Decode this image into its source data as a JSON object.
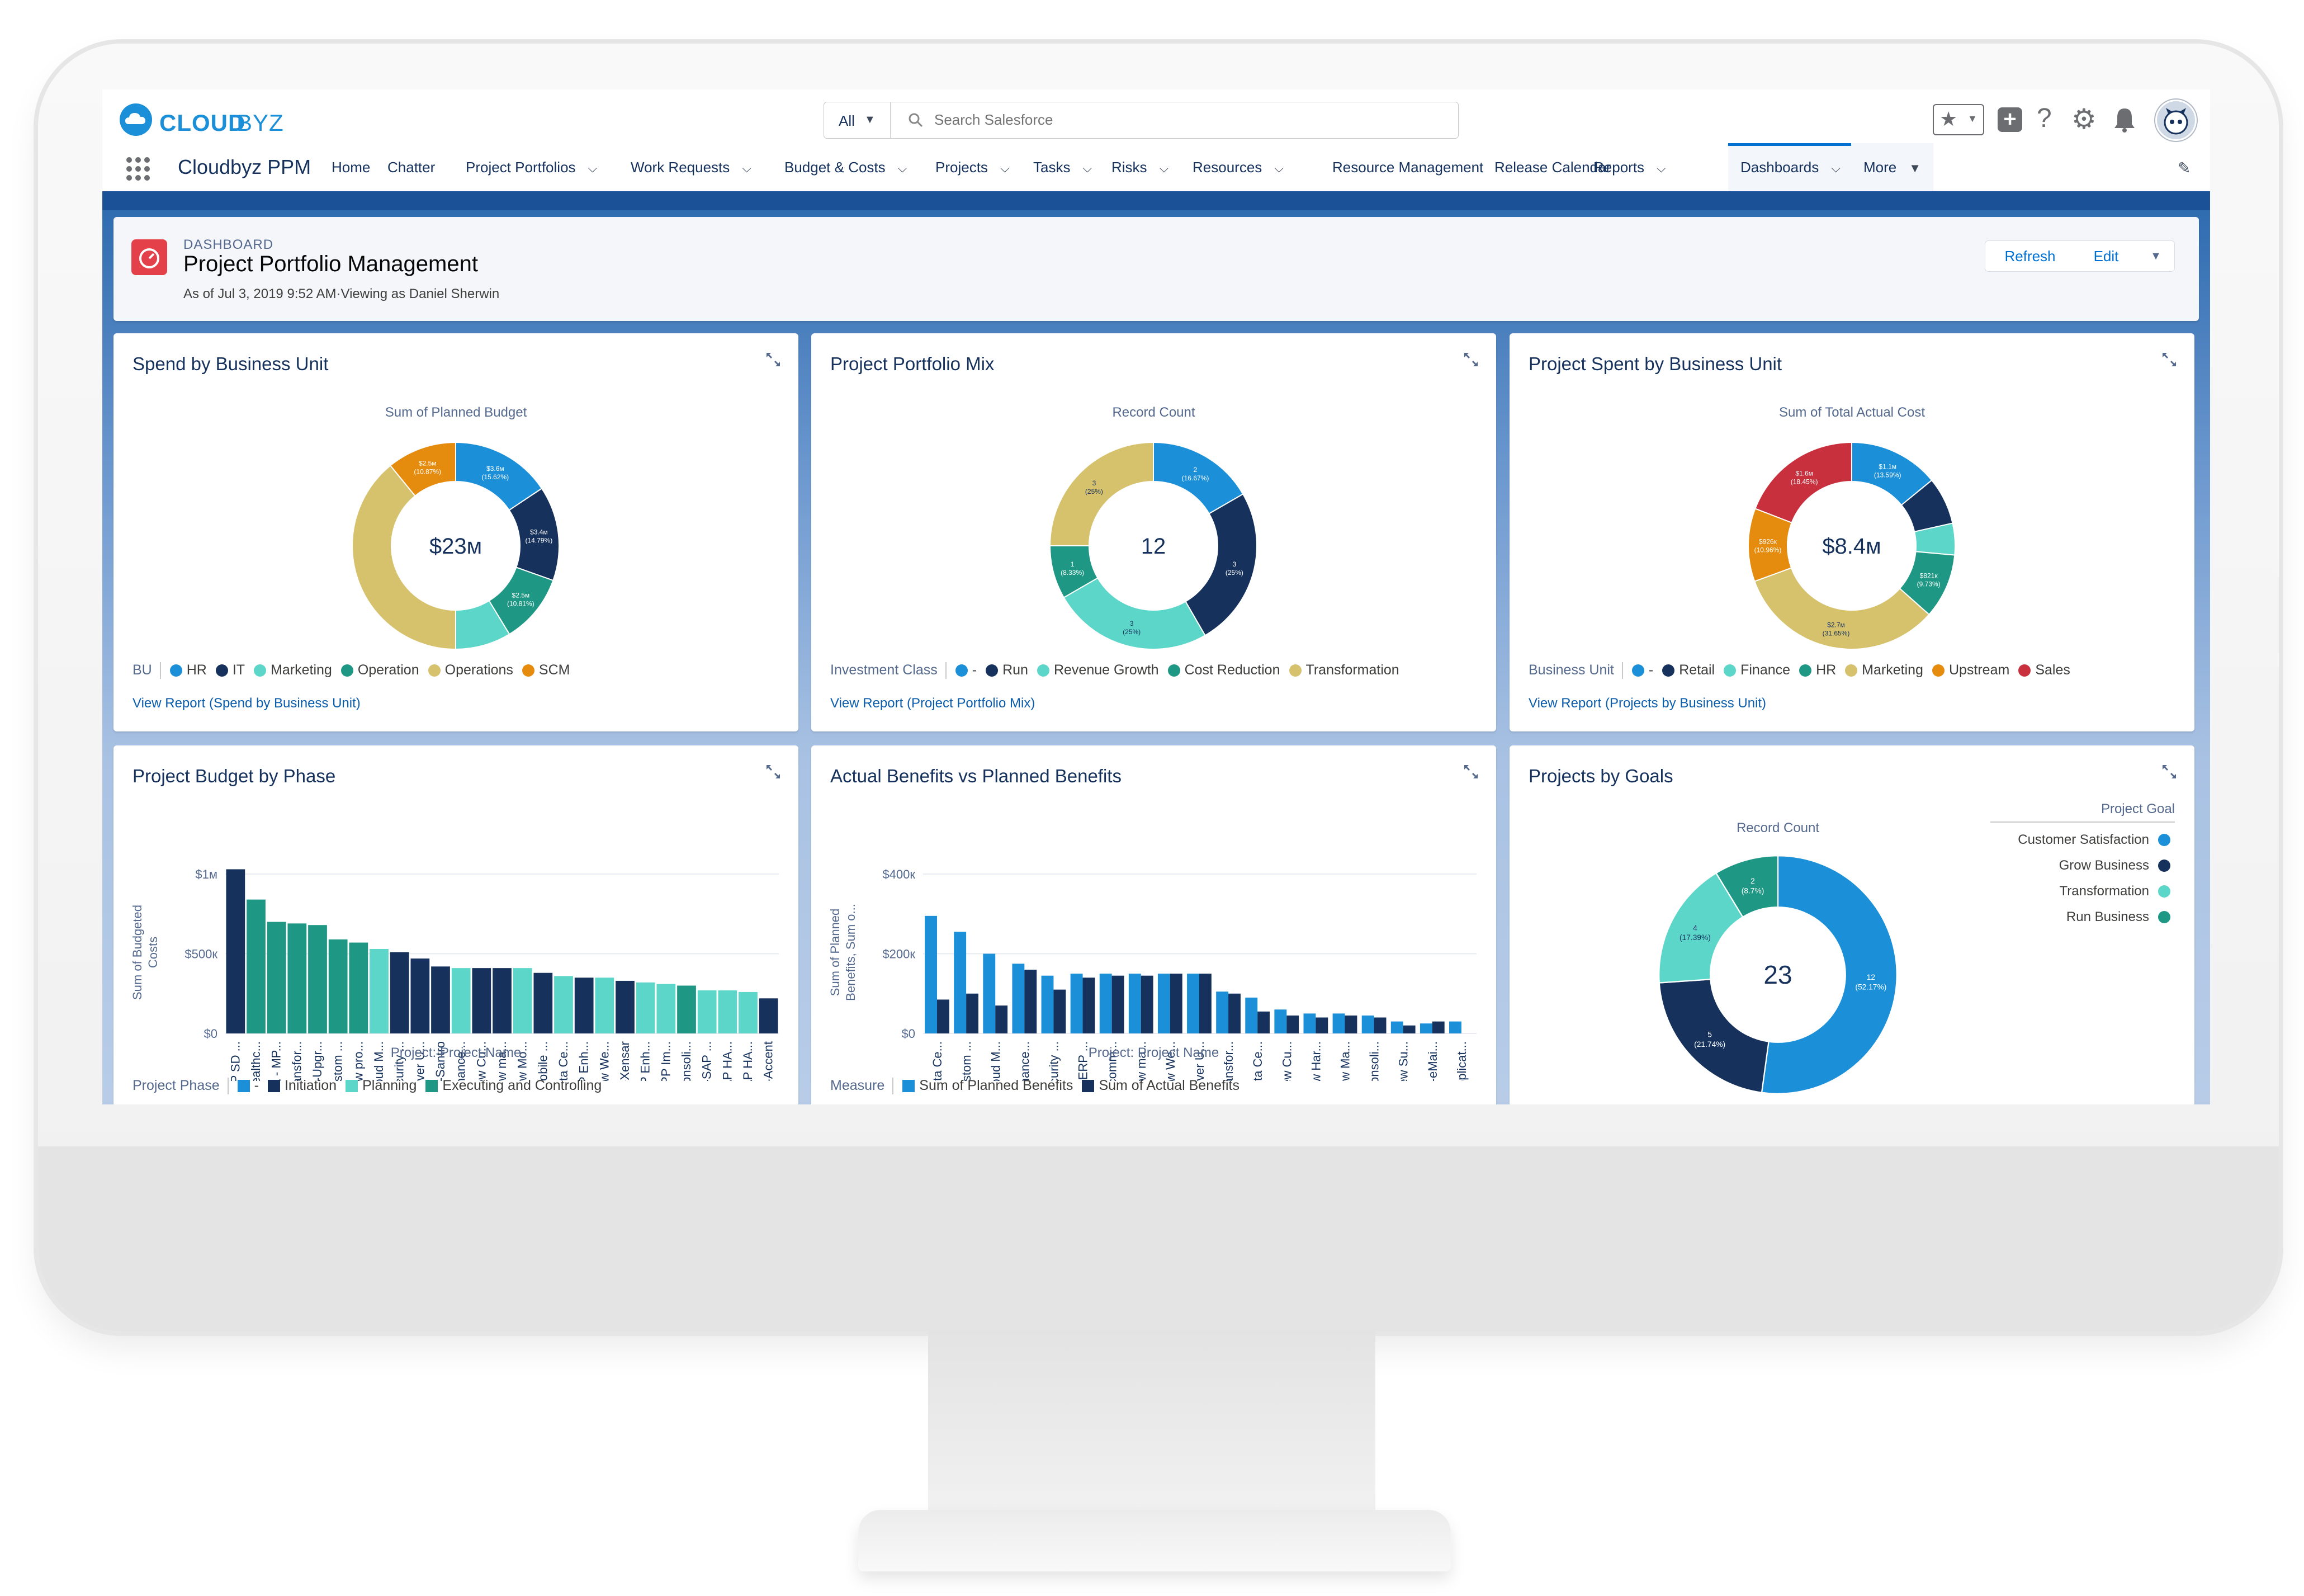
{
  "header": {
    "logo_text_1": "CLOUD",
    "logo_text_2": "BYZ",
    "search_scope": "All",
    "search_placeholder": "Search Salesforce"
  },
  "nav": {
    "app_name": "Cloudbyz PPM",
    "items": [
      {
        "label": "Home",
        "chevron": false
      },
      {
        "label": "Chatter",
        "chevron": false
      },
      {
        "label": "Project Portfolios",
        "chevron": true
      },
      {
        "label": "Work Requests",
        "chevron": true
      },
      {
        "label": "Budget & Costs",
        "chevron": true
      },
      {
        "label": "Projects",
        "chevron": true
      },
      {
        "label": "Tasks",
        "chevron": true
      },
      {
        "label": "Risks",
        "chevron": true
      },
      {
        "label": "Resources",
        "chevron": true
      },
      {
        "label": "Resource Management",
        "chevron": false
      },
      {
        "label": "Release Calendar",
        "chevron": false
      },
      {
        "label": "Reports",
        "chevron": true
      },
      {
        "label": "Dashboards",
        "chevron": true
      },
      {
        "label": "More",
        "chevron": true
      }
    ],
    "active_item": "Dashboards"
  },
  "dashboard": {
    "kicker": "DASHBOARD",
    "title": "Project Portfolio Management",
    "subtitle": "As of Jul 3, 2019 9:52 AM·Viewing as Daniel Sherwin",
    "refresh_label": "Refresh",
    "edit_label": "Edit"
  },
  "colors": {
    "hr": "#1b8fd8",
    "it": "#16325c",
    "marketing": "#5cd6c9",
    "operation": "#1e9884",
    "operations": "#d6c16c",
    "scm": "#e58b0e",
    "sales": "#c9303e"
  },
  "panels": {
    "spend": {
      "title": "Spend by Business Unit",
      "subtitle": "Sum of Planned Budget",
      "center": "$23м",
      "legend_title": "BU",
      "legend": [
        "HR",
        "IT",
        "Marketing",
        "Operation",
        "Operations",
        "SCM"
      ],
      "link": "View Report (Spend by Business Unit)",
      "slice_labels": [
        {
          "v": "$3.6м",
          "p": "(15.62%)"
        },
        {
          "v": "$3.4м",
          "p": "(14.79%)"
        },
        {
          "v": "$2.5м",
          "p": "(10.81%)"
        },
        {
          "v": "$2.5м",
          "p": "(10.87%)"
        }
      ]
    },
    "mix": {
      "title": "Project Portfolio Mix",
      "subtitle": "Record Count",
      "center": "12",
      "legend_title": "Investment Class",
      "legend": [
        "-",
        "Run",
        "Revenue Growth",
        "Cost Reduction",
        "Transformation"
      ],
      "link": "View Report (Project Portfolio Mix)",
      "slice_labels": [
        {
          "v": "2",
          "p": "(16.67%)"
        },
        {
          "v": "3",
          "p": "(25%)"
        },
        {
          "v": "3",
          "p": "(25%)"
        },
        {
          "v": "1",
          "p": "(8.33%)"
        },
        {
          "v": "3",
          "p": "(25%)"
        }
      ]
    },
    "spent": {
      "title": "Project Spent by Business Unit",
      "subtitle": "Sum of Total Actual Cost",
      "center": "$8.4м",
      "legend_title": "Business Unit",
      "legend": [
        "-",
        "Retail",
        "Finance",
        "HR",
        "Marketing",
        "Upstream",
        "Sales"
      ],
      "link": "View Report (Projects by Business Unit)",
      "slice_labels": [
        {
          "v": "$1.1м",
          "p": "(13.59%)"
        },
        {
          "v": "$821к",
          "p": "(9.73%)"
        },
        {
          "v": "$2.7м",
          "p": "(31.65%)"
        },
        {
          "v": "$926к",
          "p": "(10.96%)"
        },
        {
          "v": "$1.6м",
          "p": "(18.45%)"
        }
      ]
    },
    "phase": {
      "title": "Project Budget by Phase",
      "ylabel_1": "Sum of Budgeted",
      "ylabel_2": "Costs",
      "xlabel": "Project: Project  Name",
      "legend_title": "Project Phase",
      "legend": [
        "-",
        "Initiation",
        "Planning",
        "Executing and Controlling"
      ]
    },
    "benefits": {
      "title": "Actual Benefits vs Planned Benefits",
      "ylabel_1": "Sum of Planned",
      "ylabel_2": "Benefits, Sum o...",
      "xlabel": "Project: Project  Name",
      "legend_title": "Measure",
      "legend": [
        "Sum of Planned Benefits",
        "Sum of Actual Benefits"
      ]
    },
    "goals": {
      "title": "Projects by Goals",
      "subtitle": "Record Count",
      "center": "23",
      "legend_title": "Project Goal",
      "legend": [
        "Customer Satisfaction",
        "Grow Business",
        "Transformation",
        "Run Business"
      ],
      "slice_labels": [
        {
          "v": "12",
          "p": "(52.17%)"
        },
        {
          "v": "5",
          "p": "(21.74%)"
        },
        {
          "v": "4",
          "p": "(17.39%)"
        },
        {
          "v": "2",
          "p": "(8.7%)"
        }
      ]
    }
  },
  "chart_data": [
    {
      "type": "pie",
      "title": "Spend by Business Unit",
      "subtitle": "Sum of Planned Budget",
      "categories": [
        "HR",
        "IT",
        "Operation",
        "Marketing",
        "Operations",
        "SCM"
      ],
      "values": [
        3.6,
        3.4,
        2.5,
        2.0,
        9.0,
        2.5
      ],
      "unit": "$M",
      "total_label": "$23м",
      "colors": [
        "#1b8fd8",
        "#16325c",
        "#1e9884",
        "#5cd6c9",
        "#d6c16c",
        "#e58b0e"
      ]
    },
    {
      "type": "pie",
      "title": "Project Portfolio Mix",
      "subtitle": "Record Count",
      "categories": [
        "-",
        "Run",
        "Revenue Growth",
        "Cost Reduction",
        "Transformation"
      ],
      "values": [
        2,
        3,
        3,
        1,
        3
      ],
      "total_label": "12",
      "colors": [
        "#1b8fd8",
        "#16325c",
        "#5cd6c9",
        "#1e9884",
        "#d6c16c"
      ]
    },
    {
      "type": "pie",
      "title": "Project Spent by Business Unit",
      "subtitle": "Sum of Total Actual Cost",
      "categories": [
        "-",
        "Retail",
        "Finance",
        "HR",
        "Marketing",
        "Upstream",
        "Sales"
      ],
      "values": [
        1.14,
        0.6,
        0.4,
        0.82,
        2.66,
        0.926,
        1.55
      ],
      "unit": "$M",
      "total_label": "$8.4м",
      "colors": [
        "#1b8fd8",
        "#16325c",
        "#5cd6c9",
        "#1e9884",
        "#d6c16c",
        "#e58b0e",
        "#c9303e"
      ]
    },
    {
      "type": "bar",
      "title": "Project Budget by Phase",
      "xlabel": "Project: Project  Name",
      "ylabel": "Sum of Budgeted Costs",
      "ylim": [
        0,
        1000000
      ],
      "yticks": [
        "$0",
        "$500к",
        "$1м"
      ],
      "categories": [
        "SAP SD ...",
        "Healthc...",
        "CSL - MP...",
        "Transfor...",
        "BT-Upgr...",
        "Custom ...",
        "New pro...",
        "Cloud M...",
        "Security ...",
        "Server U...",
        "DT-Santro",
        "Enhance...",
        "New Cu...",
        "New ma...",
        "New Mo...",
        "Mobile ...",
        "Data Ce...",
        "SAP Enh...",
        "New We...",
        "DT-Xensar",
        "SAP Enh...",
        "MPP Im...",
        "Consoli...",
        "DT-SAP ...",
        "SAP HA...",
        "SAP HA...",
        "DT-Accent"
      ],
      "values": [
        1030000,
        840000,
        700000,
        690000,
        680000,
        590000,
        570000,
        530000,
        510000,
        470000,
        420000,
        410000,
        410000,
        410000,
        410000,
        380000,
        360000,
        350000,
        350000,
        330000,
        320000,
        310000,
        300000,
        270000,
        270000,
        260000,
        220000
      ],
      "phases": [
        "Initiation",
        "Executing and Controlling",
        "Executing and Controlling",
        "Executing and Controlling",
        "Executing and Controlling",
        "Executing and Controlling",
        "Executing and Controlling",
        "Planning",
        "Initiation",
        "Initiation",
        "Initiation",
        "Planning",
        "Initiation",
        "Initiation",
        "Planning",
        "Initiation",
        "Planning",
        "Initiation",
        "Planning",
        "Initiation",
        "Planning",
        "Planning",
        "Executing and Controlling",
        "Planning",
        "Planning",
        "Planning",
        "Initiation"
      ]
    },
    {
      "type": "bar",
      "title": "Actual Benefits vs Planned Benefits",
      "xlabel": "Project: Project  Name",
      "ylabel": "Sum of Planned Benefits, Sum o...",
      "ylim": [
        0,
        400000
      ],
      "yticks": [
        "$0",
        "$200к",
        "$400к"
      ],
      "categories": [
        "Data Ce...",
        "Custom ...",
        "Cloud M...",
        "Enhance...",
        "Security ...",
        "DT-ERP ...",
        "Ecomm...",
        "New ma...",
        "New We...",
        "Server U...",
        "Transfor...",
        "Data Ce...",
        "New Cu...",
        "New Har...",
        "New Ma...",
        "Consoli...",
        "New Su...",
        "DT-eMai...",
        "Applicat..."
      ],
      "series": [
        {
          "name": "Sum of Planned Benefits",
          "values": [
            295000,
            255000,
            200000,
            175000,
            145000,
            150000,
            150000,
            150000,
            150000,
            150000,
            105000,
            90000,
            60000,
            50000,
            50000,
            45000,
            30000,
            25000,
            30000
          ]
        },
        {
          "name": "Sum of Actual Benefits",
          "values": [
            85000,
            100000,
            70000,
            160000,
            110000,
            140000,
            145000,
            145000,
            150000,
            150000,
            100000,
            55000,
            45000,
            40000,
            45000,
            40000,
            20000,
            30000,
            0
          ]
        }
      ]
    },
    {
      "type": "pie",
      "title": "Projects by Goals",
      "subtitle": "Record Count",
      "categories": [
        "Customer Satisfaction",
        "Grow Business",
        "Transformation",
        "Run Business"
      ],
      "values": [
        12,
        5,
        4,
        2
      ],
      "total_label": "23",
      "colors": [
        "#1b8fd8",
        "#16325c",
        "#5cd6c9",
        "#1e9884"
      ]
    }
  ]
}
